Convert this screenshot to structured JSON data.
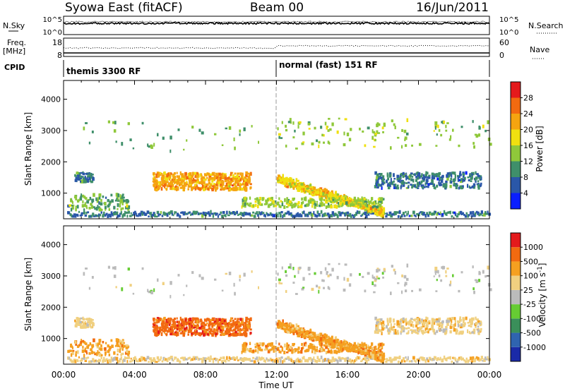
{
  "header": {
    "title_left": "Syowa East (fitACF)",
    "title_center": "Beam 00",
    "title_right": "16/Jun/2011"
  },
  "chart_data": [
    {
      "type": "line",
      "panel": "noise",
      "left_label": "N.Sky",
      "right_label": "N.Search",
      "left_ticks": [
        "10^5",
        "10^0"
      ],
      "right_ticks": [
        "10^5",
        "10^0"
      ],
      "series": [
        {
          "name": "N.Sky",
          "style": "solid"
        },
        {
          "name": "N.Search",
          "style": "dotted"
        }
      ]
    },
    {
      "type": "line",
      "panel": "frequency",
      "left_label_1": "Freq.",
      "left_label_2": "[MHz]",
      "right_label": "Nave",
      "left_ticks": [
        "18",
        "8"
      ],
      "right_ticks": [
        "60",
        "0"
      ],
      "series": [
        {
          "name": "Freq.",
          "style": "solid"
        },
        {
          "name": "Nave",
          "style": "dotted"
        }
      ]
    },
    {
      "type": "table",
      "panel": "cpid",
      "left_label": "CPID",
      "segments": [
        {
          "start_ut": 0,
          "end_ut": 12,
          "label": "themis 3300 RF"
        },
        {
          "start_ut": 12,
          "end_ut": 24,
          "label": "normal (fast) 151 RF"
        }
      ]
    },
    {
      "type": "heatmap",
      "panel": "power",
      "ylabel": "Slant Range [km]",
      "yticks": [
        1000,
        2000,
        3000,
        4000
      ],
      "ylim": [
        180,
        4600
      ],
      "xlim": [
        0,
        24
      ],
      "colorbar": {
        "label": "Power [dB]",
        "ticks": [
          "4",
          "8",
          "12",
          "16",
          "20",
          "24",
          "28"
        ],
        "colors": [
          "#0a1eff",
          "#2a57a8",
          "#3f8f6a",
          "#8fc83a",
          "#f0e010",
          "#f5a410",
          "#f26a10",
          "#e41a1c"
        ]
      }
    },
    {
      "type": "heatmap",
      "panel": "velocity",
      "ylabel": "Slant Range [km]",
      "yticks": [
        1000,
        2000,
        3000,
        4000
      ],
      "ylim": [
        180,
        4600
      ],
      "xlim": [
        0,
        24
      ],
      "xlabel": "Time UT",
      "xticks": [
        "00:00",
        "04:00",
        "08:00",
        "12:00",
        "16:00",
        "20:00",
        "00:00"
      ],
      "colorbar": {
        "label": "Velocity [m s",
        "label_sup": "-1",
        "label_end": "]",
        "ticks": [
          "1000",
          "500",
          "100",
          "25",
          "-25",
          "-100",
          "-500",
          "-1000"
        ],
        "colors": [
          "#1a2aa8",
          "#2f64b0",
          "#3a8f5a",
          "#66cc33",
          "#bbbbbb",
          "#f0d080",
          "#f5a020",
          "#f26a10",
          "#e41a1c"
        ]
      }
    }
  ]
}
